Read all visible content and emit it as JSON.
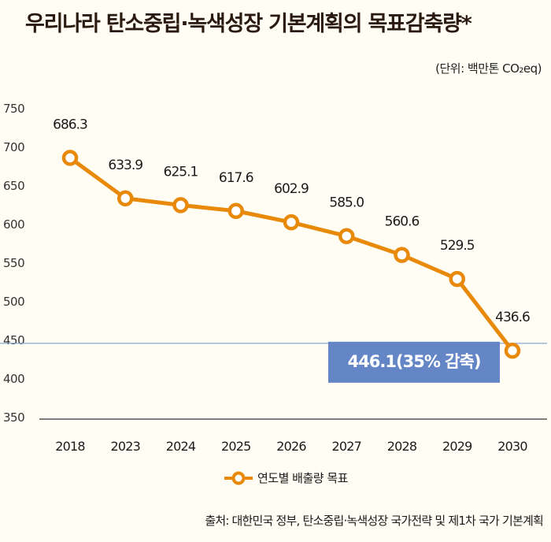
{
  "title": "우리나라 탄소중립·녹색성장 기본계획의 목표감축량*",
  "unit": "(단위: 백만톤 CO₂eq)",
  "legend_label": "연도별 배출량 목표",
  "source": "출처: 대한민국 정부, 탄소중립·녹색성장 국가전략 및 제1차 국가 기본계획",
  "colors": {
    "line": "#e8890a",
    "reference": "#7f9ecb",
    "callout_bg": "#6486c6",
    "callout_text": "#ffffff"
  },
  "chart_data": {
    "type": "line",
    "categories": [
      "2018",
      "2023",
      "2024",
      "2025",
      "2026",
      "2027",
      "2028",
      "2029",
      "2030"
    ],
    "series": [
      {
        "name": "연도별 배출량 목표",
        "values": [
          686.3,
          633.9,
          625.1,
          617.6,
          602.9,
          585.0,
          560.6,
          529.5,
          436.6
        ]
      }
    ],
    "data_labels": [
      "686.3",
      "633.9",
      "625.1",
      "617.6",
      "602.9",
      "585.0",
      "560.6",
      "529.5",
      "436.6"
    ],
    "yticks": [
      750,
      700,
      650,
      600,
      550,
      500,
      450,
      400,
      350
    ],
    "ylim": [
      350,
      750
    ],
    "reference_line": {
      "value": 446.1,
      "label": "446.1(35% 감축)"
    },
    "grid": false,
    "legend": "bottom-center"
  }
}
